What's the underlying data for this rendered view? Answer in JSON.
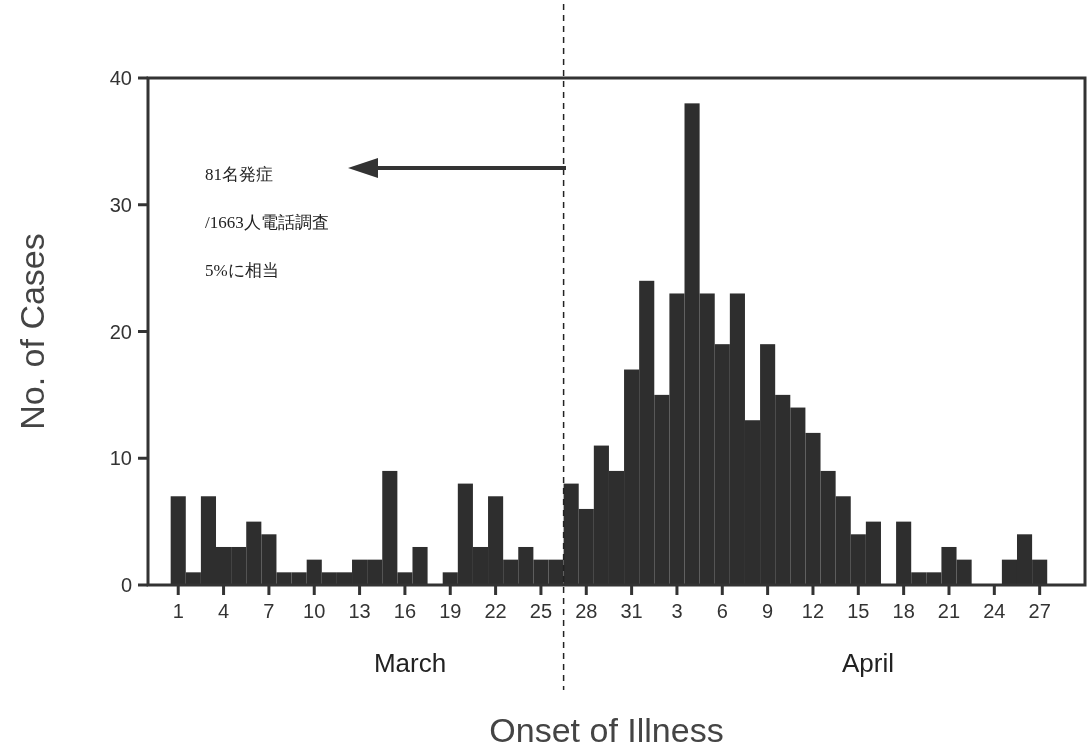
{
  "chart_data": {
    "type": "bar",
    "ylabel": "No. of Cases",
    "xlabel": "Onset of Illness",
    "x": [
      "--03-01",
      "--03-02",
      "--03-03",
      "--03-04",
      "--03-05",
      "--03-06",
      "--03-07",
      "--03-08",
      "--03-09",
      "--03-10",
      "--03-11",
      "--03-12",
      "--03-13",
      "--03-14",
      "--03-15",
      "--03-16",
      "--03-17",
      "--03-18",
      "--03-19",
      "--03-20",
      "--03-21",
      "--03-22",
      "--03-23",
      "--03-24",
      "--03-25",
      "--03-26",
      "--03-27",
      "--03-28",
      "--03-29",
      "--03-30",
      "--03-31",
      "--04-01",
      "--04-02",
      "--04-03",
      "--04-04",
      "--04-05",
      "--04-06",
      "--04-07",
      "--04-08",
      "--04-09",
      "--04-10",
      "--04-11",
      "--04-12",
      "--04-13",
      "--04-14",
      "--04-15",
      "--04-16",
      "--04-17",
      "--04-18",
      "--04-19",
      "--04-20",
      "--04-21",
      "--04-22",
      "--04-23",
      "--04-24",
      "--04-25",
      "--04-26",
      "--04-27"
    ],
    "values": [
      7,
      1,
      7,
      3,
      3,
      5,
      4,
      1,
      1,
      2,
      1,
      1,
      2,
      2,
      9,
      1,
      3,
      0,
      1,
      8,
      3,
      7,
      2,
      3,
      2,
      2,
      8,
      6,
      11,
      9,
      17,
      24,
      15,
      23,
      38,
      23,
      19,
      23,
      13,
      19,
      15,
      14,
      12,
      9,
      7,
      4,
      5,
      0,
      5,
      1,
      1,
      3,
      2,
      0,
      0,
      2,
      4,
      2
    ],
    "color": "#2e2e2e",
    "xlim": [
      "--02-27",
      "--04-30"
    ],
    "xticks": [
      {
        "value": "--03-01",
        "label": "1"
      },
      {
        "value": "--03-04",
        "label": "4"
      },
      {
        "value": "--03-07",
        "label": "7"
      },
      {
        "value": "--03-10",
        "label": "10"
      },
      {
        "value": "--03-13",
        "label": "13"
      },
      {
        "value": "--03-16",
        "label": "16"
      },
      {
        "value": "--03-19",
        "label": "19"
      },
      {
        "value": "--03-22",
        "label": "22"
      },
      {
        "value": "--03-25",
        "label": "25"
      },
      {
        "value": "--03-28",
        "label": "28"
      },
      {
        "value": "--03-31",
        "label": "31"
      },
      {
        "value": "--04-03",
        "label": "3"
      },
      {
        "value": "--04-06",
        "label": "6"
      },
      {
        "value": "--04-09",
        "label": "9"
      },
      {
        "value": "--04-12",
        "label": "12"
      },
      {
        "value": "--04-15",
        "label": "15"
      },
      {
        "value": "--04-18",
        "label": "18"
      },
      {
        "value": "--04-21",
        "label": "21"
      },
      {
        "value": "--04-24",
        "label": "24"
      },
      {
        "value": "--04-27",
        "label": "27"
      }
    ],
    "ylim": [
      0,
      40
    ],
    "yticks": [
      0,
      10,
      20,
      30,
      40
    ],
    "ref_lines": [
      {
        "axis": "x",
        "value": "--03-26T12:00",
        "line_style": "dashed",
        "color": "#222222"
      }
    ],
    "annotations": [
      "March",
      "April",
      "81名発症",
      "/1663人電話調査",
      "5%に相当"
    ]
  }
}
